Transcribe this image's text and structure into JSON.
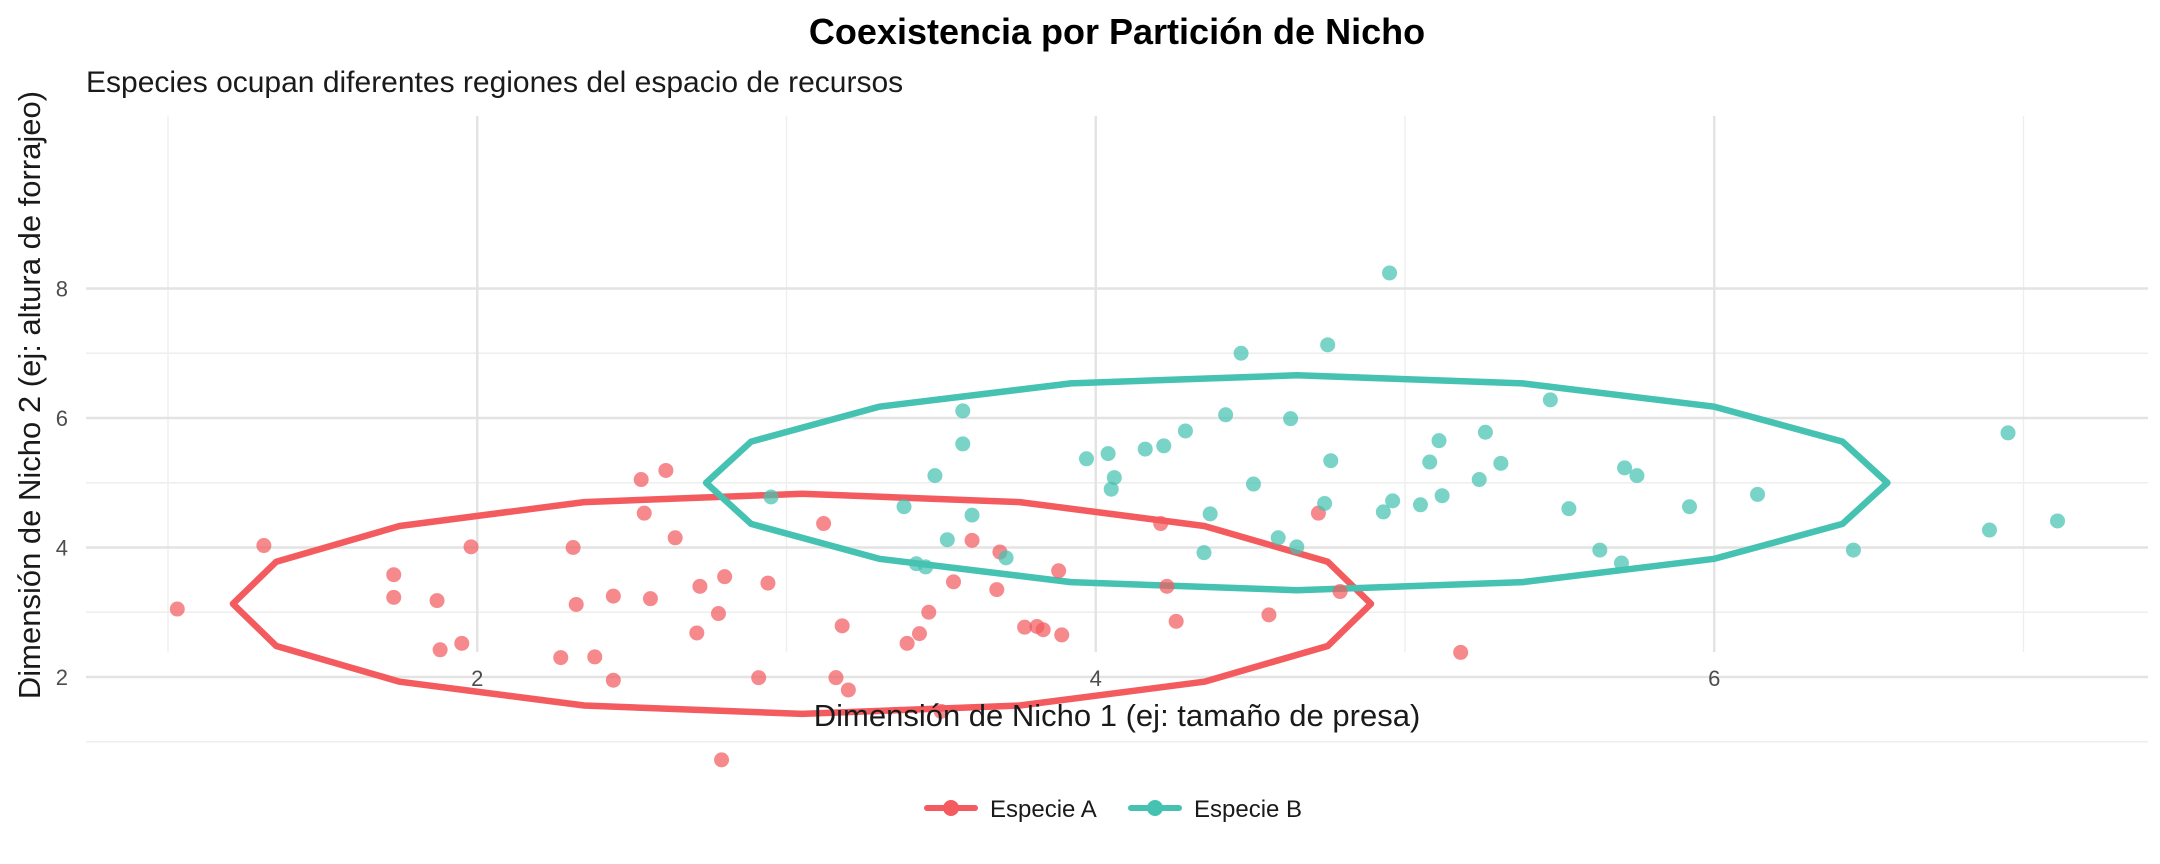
{
  "chart_data": {
    "type": "scatter",
    "title": "Coexistencia por Partición de Nicho",
    "subtitle": "Especies ocupan diferentes regiones del espacio de recursos",
    "xlabel": "Dimensión de Nicho 1 (ej: tamaño de presa)",
    "ylabel": "Dimensión de Nicho 2 (ej: altura de forrajeo)",
    "xlim": [
      0.7,
      7.4
    ],
    "ylim": [
      0.5,
      8.6
    ],
    "x_ticks": [
      2,
      4,
      6
    ],
    "y_ticks": [
      2,
      4,
      6,
      8
    ],
    "grid": true,
    "legend_position": "bottom",
    "series": [
      {
        "name": "Especie A",
        "color": "#F35B5F",
        "ellipse": {
          "cx": 3.05,
          "cy": 3.13,
          "rx": 1.84,
          "ry": 1.7
        },
        "points": [
          [
            1.03,
            3.05
          ],
          [
            1.31,
            4.03
          ],
          [
            1.73,
            3.58
          ],
          [
            1.73,
            3.23
          ],
          [
            1.87,
            3.18
          ],
          [
            1.88,
            2.42
          ],
          [
            1.95,
            2.52
          ],
          [
            1.98,
            4.01
          ],
          [
            2.27,
            2.3
          ],
          [
            2.31,
            4.0
          ],
          [
            2.32,
            3.12
          ],
          [
            2.38,
            2.31
          ],
          [
            2.44,
            3.25
          ],
          [
            2.44,
            1.95
          ],
          [
            2.53,
            5.05
          ],
          [
            2.54,
            4.53
          ],
          [
            2.56,
            3.21
          ],
          [
            2.61,
            5.19
          ],
          [
            2.64,
            4.15
          ],
          [
            2.71,
            2.68
          ],
          [
            2.72,
            3.4
          ],
          [
            2.78,
            2.98
          ],
          [
            2.8,
            3.55
          ],
          [
            2.79,
            0.72
          ],
          [
            2.91,
            1.99
          ],
          [
            2.94,
            3.45
          ],
          [
            3.12,
            4.37
          ],
          [
            3.16,
            1.99
          ],
          [
            3.18,
            2.79
          ],
          [
            3.2,
            1.8
          ],
          [
            3.39,
            2.52
          ],
          [
            3.43,
            2.67
          ],
          [
            3.46,
            3.0
          ],
          [
            3.5,
            1.47
          ],
          [
            3.54,
            3.47
          ],
          [
            3.6,
            4.11
          ],
          [
            3.68,
            3.35
          ],
          [
            3.69,
            3.93
          ],
          [
            3.77,
            2.77
          ],
          [
            3.81,
            2.78
          ],
          [
            3.83,
            2.73
          ],
          [
            3.88,
            3.64
          ],
          [
            3.89,
            2.65
          ],
          [
            4.21,
            4.37
          ],
          [
            4.23,
            3.4
          ],
          [
            4.26,
            2.86
          ],
          [
            4.56,
            2.96
          ],
          [
            4.72,
            4.53
          ],
          [
            4.79,
            3.32
          ],
          [
            5.18,
            2.38
          ]
        ]
      },
      {
        "name": "Especie B",
        "color": "#45C2B1",
        "ellipse": {
          "cx": 4.65,
          "cy": 5.0,
          "rx": 1.91,
          "ry": 1.66
        },
        "points": [
          [
            2.95,
            4.78
          ],
          [
            3.38,
            4.63
          ],
          [
            3.42,
            3.75
          ],
          [
            3.45,
            3.7
          ],
          [
            3.48,
            5.11
          ],
          [
            3.52,
            4.12
          ],
          [
            3.57,
            6.11
          ],
          [
            3.57,
            5.6
          ],
          [
            3.6,
            4.5
          ],
          [
            3.71,
            3.84
          ],
          [
            3.97,
            5.37
          ],
          [
            4.04,
            5.45
          ],
          [
            4.05,
            4.9
          ],
          [
            4.06,
            5.08
          ],
          [
            4.16,
            5.52
          ],
          [
            4.22,
            5.57
          ],
          [
            4.29,
            5.8
          ],
          [
            4.35,
            3.92
          ],
          [
            4.37,
            4.52
          ],
          [
            4.42,
            6.05
          ],
          [
            4.47,
            7.0
          ],
          [
            4.51,
            4.98
          ],
          [
            4.59,
            4.15
          ],
          [
            4.63,
            5.99
          ],
          [
            4.65,
            4.01
          ],
          [
            4.74,
            4.68
          ],
          [
            4.75,
            7.13
          ],
          [
            4.76,
            5.34
          ],
          [
            4.93,
            4.55
          ],
          [
            4.95,
            8.24
          ],
          [
            4.96,
            4.72
          ],
          [
            5.05,
            4.66
          ],
          [
            5.08,
            5.32
          ],
          [
            5.11,
            5.65
          ],
          [
            5.12,
            4.8
          ],
          [
            5.24,
            5.05
          ],
          [
            5.26,
            5.78
          ],
          [
            5.31,
            5.3
          ],
          [
            5.47,
            6.28
          ],
          [
            5.53,
            4.6
          ],
          [
            5.63,
            3.96
          ],
          [
            5.7,
            3.76
          ],
          [
            5.71,
            5.23
          ],
          [
            5.75,
            5.11
          ],
          [
            5.92,
            4.63
          ],
          [
            6.14,
            4.82
          ],
          [
            6.45,
            3.96
          ],
          [
            6.89,
            4.27
          ],
          [
            6.95,
            5.77
          ],
          [
            7.11,
            4.41
          ]
        ]
      }
    ]
  }
}
